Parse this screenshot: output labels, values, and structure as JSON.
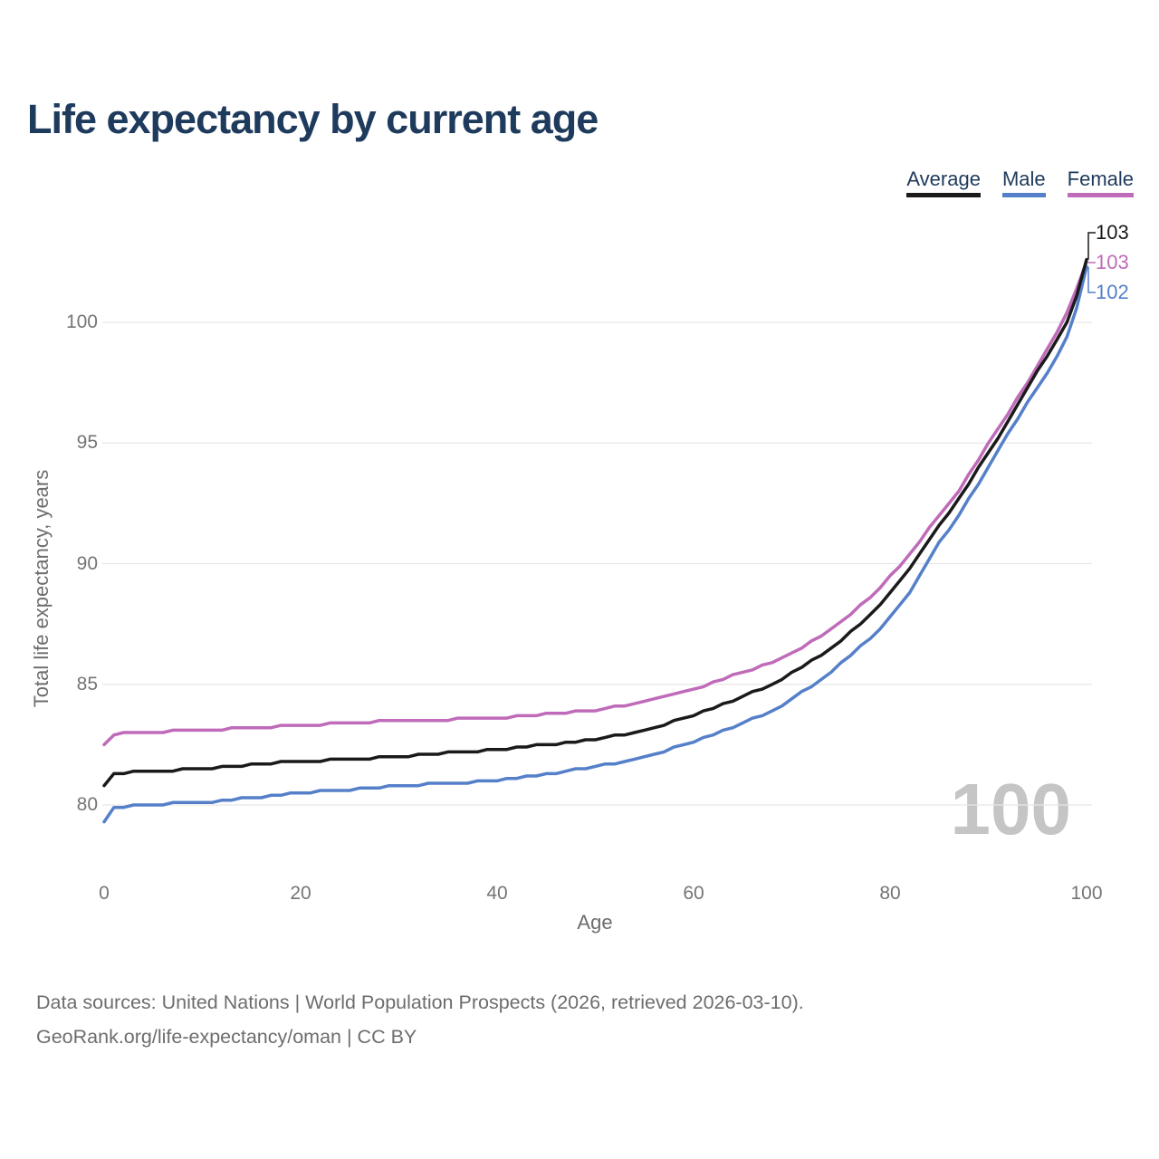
{
  "header": {
    "title": "Life expectancy by current age"
  },
  "legend": {
    "items": [
      {
        "label": "Average",
        "color": "#1a1a1a"
      },
      {
        "label": "Male",
        "color": "#5580c9"
      },
      {
        "label": "Female",
        "color": "#bf6bb9"
      }
    ]
  },
  "chart_data": {
    "type": "line",
    "title": "Life expectancy by current age",
    "xlabel": "Age",
    "ylabel": "Total life expectancy, years",
    "xlim": [
      0,
      100
    ],
    "ylim": [
      79,
      103.5
    ],
    "x_ticks": [
      0,
      20,
      40,
      60,
      80,
      100
    ],
    "y_ticks": [
      80,
      85,
      90,
      95,
      100
    ],
    "grid": "horizontal",
    "legend_position": "top-right",
    "watermark": "100",
    "x": [
      0,
      1,
      2,
      3,
      4,
      5,
      6,
      7,
      8,
      9,
      10,
      11,
      12,
      13,
      14,
      15,
      16,
      17,
      18,
      19,
      20,
      21,
      22,
      23,
      24,
      25,
      26,
      27,
      28,
      29,
      30,
      31,
      32,
      33,
      34,
      35,
      36,
      37,
      38,
      39,
      40,
      41,
      42,
      43,
      44,
      45,
      46,
      47,
      48,
      49,
      50,
      51,
      52,
      53,
      54,
      55,
      56,
      57,
      58,
      59,
      60,
      61,
      62,
      63,
      64,
      65,
      66,
      67,
      68,
      69,
      70,
      71,
      72,
      73,
      74,
      75,
      76,
      77,
      78,
      79,
      80,
      81,
      82,
      83,
      84,
      85,
      86,
      87,
      88,
      89,
      90,
      91,
      92,
      93,
      94,
      95,
      96,
      97,
      98,
      99,
      100
    ],
    "series": [
      {
        "name": "Female",
        "color": "#bf6bb9",
        "end_label": "103",
        "values": [
          82.5,
          82.9,
          83.0,
          83.0,
          83.0,
          83.0,
          83.0,
          83.1,
          83.1,
          83.1,
          83.1,
          83.1,
          83.1,
          83.2,
          83.2,
          83.2,
          83.2,
          83.2,
          83.3,
          83.3,
          83.3,
          83.3,
          83.3,
          83.4,
          83.4,
          83.4,
          83.4,
          83.4,
          83.5,
          83.5,
          83.5,
          83.5,
          83.5,
          83.5,
          83.5,
          83.5,
          83.6,
          83.6,
          83.6,
          83.6,
          83.6,
          83.6,
          83.7,
          83.7,
          83.7,
          83.8,
          83.8,
          83.8,
          83.9,
          83.9,
          83.9,
          84.0,
          84.1,
          84.1,
          84.2,
          84.3,
          84.4,
          84.5,
          84.6,
          84.7,
          84.8,
          84.9,
          85.1,
          85.2,
          85.4,
          85.5,
          85.6,
          85.8,
          85.9,
          86.1,
          86.3,
          86.5,
          86.8,
          87.0,
          87.3,
          87.6,
          87.9,
          88.3,
          88.6,
          89.0,
          89.5,
          89.9,
          90.4,
          90.9,
          91.5,
          92.0,
          92.5,
          93.0,
          93.7,
          94.3,
          95.0,
          95.6,
          96.2,
          96.9,
          97.5,
          98.2,
          98.9,
          99.6,
          100.4,
          101.4,
          102.5
        ]
      },
      {
        "name": "Male",
        "color": "#5580c9",
        "end_label": "102",
        "values": [
          79.3,
          79.9,
          79.9,
          80.0,
          80.0,
          80.0,
          80.0,
          80.1,
          80.1,
          80.1,
          80.1,
          80.1,
          80.2,
          80.2,
          80.3,
          80.3,
          80.3,
          80.4,
          80.4,
          80.5,
          80.5,
          80.5,
          80.6,
          80.6,
          80.6,
          80.6,
          80.7,
          80.7,
          80.7,
          80.8,
          80.8,
          80.8,
          80.8,
          80.9,
          80.9,
          80.9,
          80.9,
          80.9,
          81.0,
          81.0,
          81.0,
          81.1,
          81.1,
          81.2,
          81.2,
          81.3,
          81.3,
          81.4,
          81.5,
          81.5,
          81.6,
          81.7,
          81.7,
          81.8,
          81.9,
          82.0,
          82.1,
          82.2,
          82.4,
          82.5,
          82.6,
          82.8,
          82.9,
          83.1,
          83.2,
          83.4,
          83.6,
          83.7,
          83.9,
          84.1,
          84.4,
          84.7,
          84.9,
          85.2,
          85.5,
          85.9,
          86.2,
          86.6,
          86.9,
          87.3,
          87.8,
          88.3,
          88.8,
          89.5,
          90.2,
          90.9,
          91.4,
          92.0,
          92.7,
          93.3,
          94.0,
          94.7,
          95.4,
          96.0,
          96.7,
          97.3,
          97.9,
          98.6,
          99.4,
          100.6,
          102.3
        ]
      },
      {
        "name": "Average",
        "color": "#1a1a1a",
        "end_label": "103",
        "values": [
          80.8,
          81.3,
          81.3,
          81.4,
          81.4,
          81.4,
          81.4,
          81.4,
          81.5,
          81.5,
          81.5,
          81.5,
          81.6,
          81.6,
          81.6,
          81.7,
          81.7,
          81.7,
          81.8,
          81.8,
          81.8,
          81.8,
          81.8,
          81.9,
          81.9,
          81.9,
          81.9,
          81.9,
          82.0,
          82.0,
          82.0,
          82.0,
          82.1,
          82.1,
          82.1,
          82.2,
          82.2,
          82.2,
          82.2,
          82.3,
          82.3,
          82.3,
          82.4,
          82.4,
          82.5,
          82.5,
          82.5,
          82.6,
          82.6,
          82.7,
          82.7,
          82.8,
          82.9,
          82.9,
          83.0,
          83.1,
          83.2,
          83.3,
          83.5,
          83.6,
          83.7,
          83.9,
          84.0,
          84.2,
          84.3,
          84.5,
          84.7,
          84.8,
          85.0,
          85.2,
          85.5,
          85.7,
          86.0,
          86.2,
          86.5,
          86.8,
          87.2,
          87.5,
          87.9,
          88.3,
          88.8,
          89.3,
          89.8,
          90.4,
          91.0,
          91.6,
          92.1,
          92.7,
          93.3,
          94.0,
          94.6,
          95.2,
          95.9,
          96.6,
          97.3,
          98.0,
          98.6,
          99.3,
          100.0,
          101.1,
          102.6
        ]
      }
    ]
  },
  "footer": {
    "line1": "Data sources: United Nations | World Population Prospects (2026, retrieved 2026-03-10).",
    "line2": "GeoRank.org/life-expectancy/oman | CC BY"
  }
}
